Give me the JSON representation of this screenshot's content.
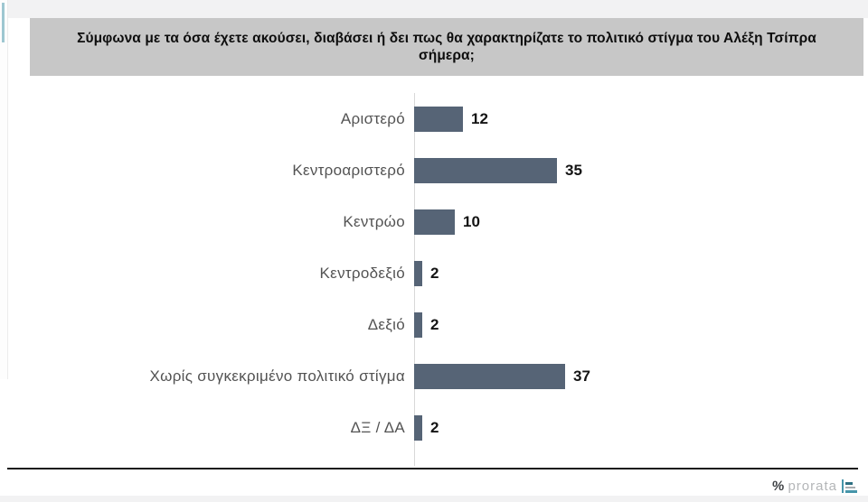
{
  "title": {
    "text": "Σύμφωνα με τα όσα έχετε ακούσει, διαβάσει ή δει πως θα χαρακτηρίζατε το πολιτικό στίγμα του Αλέξη Τσίπρα σήμερα;"
  },
  "chart_data": {
    "type": "bar",
    "orientation": "horizontal",
    "title": "Σύμφωνα με τα όσα έχετε ακούσει, διαβάσει ή δει πως θα χαρακτηρίζατε το πολιτικό στίγμα του Αλέξη Τσίπρα σήμερα;",
    "categories": [
      "Αριστερό",
      "Κεντροαριστερό",
      "Κεντρώο",
      "Κεντροδεξιό",
      "Δεξιό",
      "Χωρίς συγκεκριμένο πολιτικό στίγμα",
      "ΔΞ / ΔΑ"
    ],
    "values": [
      12,
      35,
      10,
      2,
      2,
      37,
      2
    ],
    "xlim": [
      0,
      40
    ],
    "grid": false,
    "data_labels": true,
    "legend": "none",
    "bar_color": "#566476"
  },
  "footer": {
    "brand_symbol": "%",
    "brand_name": "prorata"
  },
  "colors": {
    "bar": "#566476",
    "title_band": "#c7c7c7",
    "axis_line": "#d8d8d8",
    "accent_teal": "#4695aa",
    "label_gray": "#535353"
  }
}
